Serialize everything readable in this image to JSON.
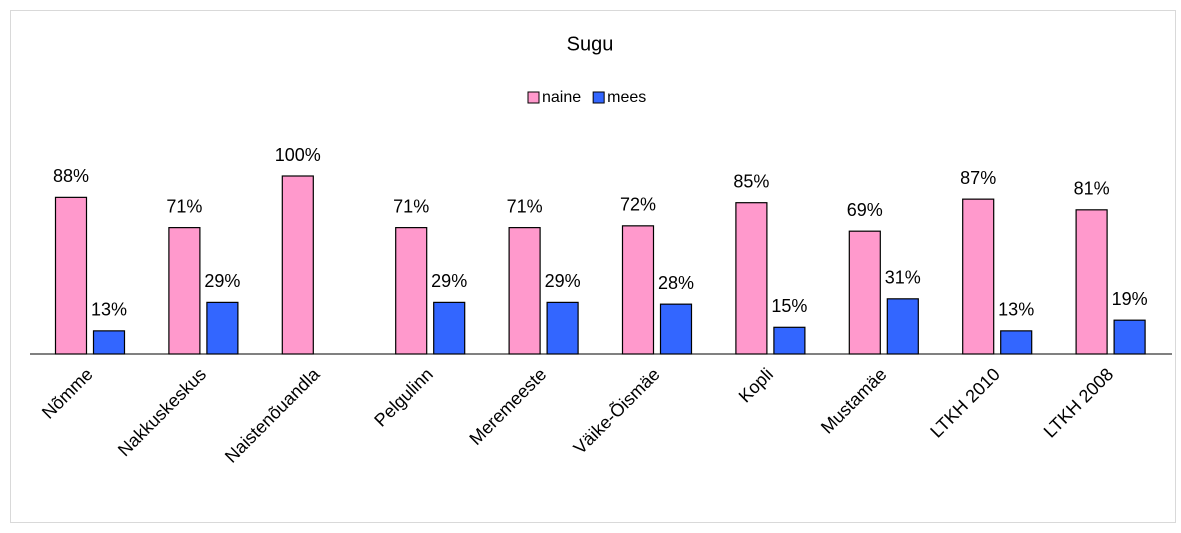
{
  "chart_data": {
    "type": "bar",
    "title": "Sugu",
    "categories": [
      "Nõmme",
      "Nakkuskeskus",
      "Naistenõuandla",
      "Pelgulinn",
      "Meremeeste",
      "Väike-Õismäe",
      "Kopli",
      "Mustamäe",
      "LTKH 2010",
      "LTKH 2008"
    ],
    "series": [
      {
        "name": "naine",
        "color": "#ff99cc",
        "values": [
          88,
          71,
          100,
          71,
          71,
          72,
          85,
          69,
          87,
          81
        ],
        "value_labels": [
          "88%",
          "71%",
          "100%",
          "71%",
          "71%",
          "72%",
          "85%",
          "69%",
          "87%",
          "81%"
        ]
      },
      {
        "name": "mees",
        "color": "#3366ff",
        "values": [
          13,
          29,
          null,
          29,
          29,
          28,
          15,
          31,
          13,
          19
        ],
        "value_labels": [
          "13%",
          "29%",
          null,
          "29%",
          "29%",
          "28%",
          "15%",
          "31%",
          "13%",
          "19%"
        ]
      }
    ],
    "ylim": [
      0,
      100
    ],
    "legend": "top"
  }
}
